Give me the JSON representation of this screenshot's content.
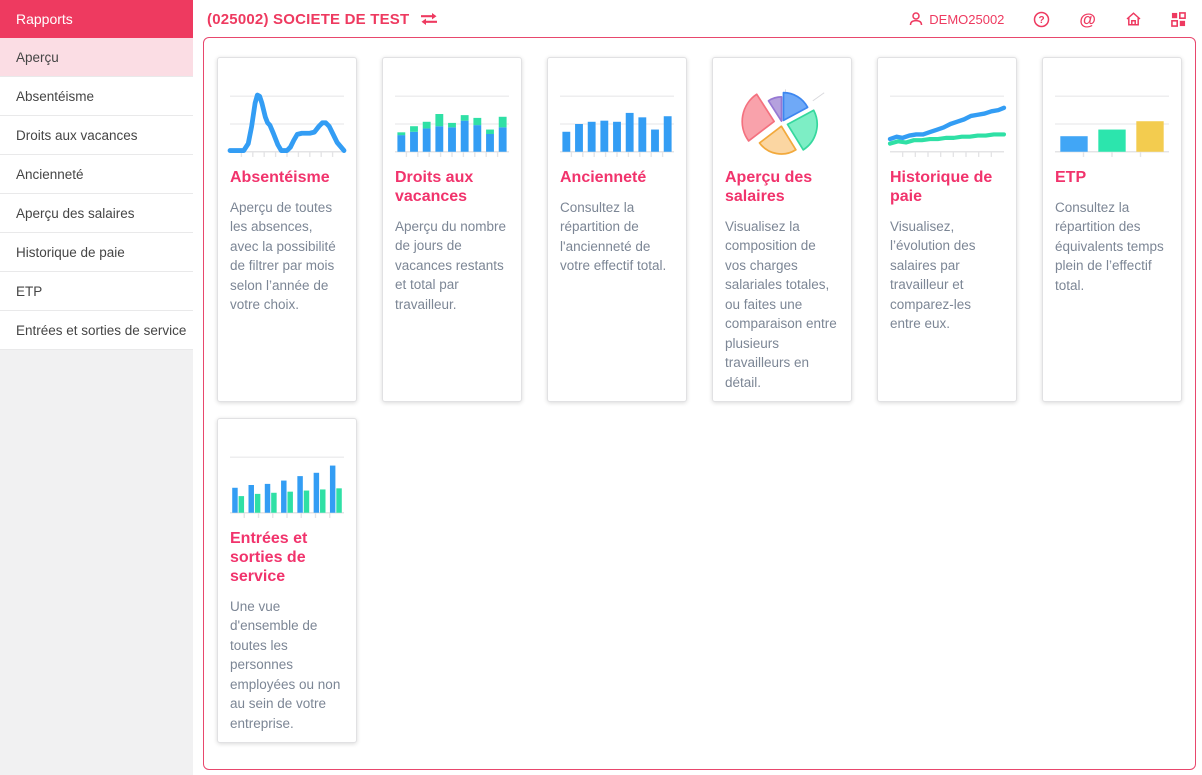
{
  "colors": {
    "accent": "#ee3a60",
    "card_title": "#f1336c",
    "selected_item_bg": "#fbdde4",
    "panel_border": "#e8476d",
    "chart_blue": "#339df4",
    "chart_green": "#2fe0a5",
    "chart_yellow": "#f3cc4f"
  },
  "sidebar": {
    "title": "Rapports",
    "items": [
      {
        "label": "Aperçu",
        "active": true
      },
      {
        "label": "Absentéisme",
        "active": false
      },
      {
        "label": "Droits aux vacances",
        "active": false
      },
      {
        "label": "Ancienneté",
        "active": false
      },
      {
        "label": "Aperçu des salaires",
        "active": false
      },
      {
        "label": "Historique de paie",
        "active": false
      },
      {
        "label": "ETP",
        "active": false
      },
      {
        "label": "Entrées et sorties de service",
        "active": false
      }
    ]
  },
  "header": {
    "company": "(025002) SOCIETE DE TEST",
    "user": "DEMO25002",
    "icons": [
      "user-icon",
      "switch-company-icon",
      "help-icon",
      "at-icon",
      "home-icon",
      "apps-icon"
    ]
  },
  "cards": [
    {
      "title": "Absentéisme",
      "description": "Aperçu de toutes les absences, avec la possibilité de filtrer par mois selon l’année de votre choix.",
      "chart": {
        "type": "line",
        "grid": [
          8,
          32
        ],
        "ticks": 9,
        "series": [
          {
            "color": "#339df4",
            "width": 4.2,
            "points": [
              [
                0,
                55
              ],
              [
                12,
                55
              ],
              [
                16,
                49
              ],
              [
                19,
                34
              ],
              [
                22,
                14
              ],
              [
                24,
                7
              ],
              [
                26,
                8
              ],
              [
                28,
                14
              ],
              [
                31,
                26
              ],
              [
                33,
                31
              ],
              [
                35,
                33
              ],
              [
                38,
                40
              ],
              [
                42,
                50
              ],
              [
                45,
                55
              ],
              [
                50,
                55
              ],
              [
                53,
                52
              ],
              [
                56,
                46
              ],
              [
                59,
                41
              ],
              [
                63,
                40
              ],
              [
                70,
                40
              ],
              [
                74,
                39
              ],
              [
                78,
                34
              ],
              [
                81,
                31
              ],
              [
                84,
                31
              ],
              [
                87,
                34
              ],
              [
                90,
                40
              ],
              [
                94,
                48
              ],
              [
                100,
                55
              ]
            ]
          }
        ]
      }
    },
    {
      "title": "Droits aux vacances",
      "description": "Aperçu du nombre de jours de vacances restants et total par travailleur.",
      "chart": {
        "type": "stacked",
        "grid": [
          8,
          32
        ],
        "ticks": 9,
        "colors": [
          "#339df4",
          "#2fe0a5"
        ],
        "values": [
          [
            30,
            5
          ],
          [
            36,
            10
          ],
          [
            42,
            12
          ],
          [
            46,
            22
          ],
          [
            44,
            8
          ],
          [
            56,
            10
          ],
          [
            48,
            13
          ],
          [
            32,
            8
          ],
          [
            44,
            19
          ]
        ]
      }
    },
    {
      "title": "Ancienneté",
      "description": "Consultez la répartition de l'ancienneté de votre effectif total.",
      "chart": {
        "type": "bars",
        "grid": [
          8,
          32
        ],
        "ticks": 9,
        "color": "#339df4",
        "values": [
          36,
          50,
          54,
          56,
          54,
          70,
          62,
          40,
          64
        ]
      }
    },
    {
      "title": "Aperçu des salaires",
      "description": "Visualisez la composition de vos charges salariales totales, ou faites une comparaison entre plusieurs travailleurs en détail.",
      "chart": {
        "type": "pie",
        "slices": [
          {
            "a0": 233,
            "a1": 327,
            "r": 28,
            "explode": 7,
            "fill": "#f9a2ab",
            "stroke": "#f4717f"
          },
          {
            "a0": 327,
            "a1": 360,
            "r": 21,
            "explode": 1.5,
            "fill": "#b5a1dd",
            "stroke": "#9678d3"
          },
          {
            "a0": 0,
            "a1": 62,
            "r": 24,
            "explode": 2.5,
            "fill": "#6fa9f7",
            "stroke": "#3d87f0"
          },
          {
            "a0": 62,
            "a1": 148,
            "r": 26,
            "explode": 5,
            "fill": "#7deec5",
            "stroke": "#35d89e"
          },
          {
            "a0": 148,
            "a1": 233,
            "r": 24,
            "explode": 3,
            "fill": "#fbd6a2",
            "stroke": "#f2a93c"
          }
        ],
        "leaders": [
          [
            53,
            2,
            53,
            11
          ],
          [
            77,
            12,
            87,
            5
          ]
        ]
      }
    },
    {
      "title": "Historique de paie",
      "description": "Visualisez, l’évolution des salaires par travailleur et comparez-les entre eux.",
      "chart": {
        "type": "line",
        "grid": [
          8
        ],
        "ticks": 8,
        "series": [
          {
            "color": "#2fe0a5",
            "width": 3.6,
            "points": [
              [
                0,
                49
              ],
              [
                7,
                47
              ],
              [
                14,
                48
              ],
              [
                21,
                46
              ],
              [
                28,
                46
              ],
              [
                35,
                45
              ],
              [
                42,
                45
              ],
              [
                49,
                44
              ],
              [
                56,
                44
              ],
              [
                63,
                43
              ],
              [
                70,
                43
              ],
              [
                77,
                42
              ],
              [
                84,
                42
              ],
              [
                91,
                41
              ],
              [
                100,
                41
              ]
            ]
          },
          {
            "color": "#339df4",
            "width": 3.8,
            "points": [
              [
                0,
                45
              ],
              [
                6,
                43
              ],
              [
                11,
                44
              ],
              [
                17,
                42
              ],
              [
                23,
                41
              ],
              [
                29,
                41
              ],
              [
                35,
                39
              ],
              [
                41,
                37
              ],
              [
                47,
                35
              ],
              [
                53,
                32
              ],
              [
                59,
                30
              ],
              [
                65,
                28
              ],
              [
                71,
                25
              ],
              [
                77,
                24
              ],
              [
                83,
                23
              ],
              [
                89,
                21
              ],
              [
                95,
                20
              ],
              [
                100,
                18
              ]
            ]
          }
        ]
      }
    },
    {
      "title": "ETP",
      "description": "Consultez la répartition des équivalents temps plein de l’effectif total.",
      "chart": {
        "type": "bars",
        "grid": [
          8,
          32
        ],
        "ticks": 3,
        "wide": true,
        "colors": [
          "#41a6f6",
          "#2ce5ad",
          "#f3cc4f"
        ],
        "values": [
          28,
          40,
          55
        ]
      }
    },
    {
      "title": "Entrées et sorties de service",
      "description": "Une vue d'ensemble de toutes les personnes employées ou non au sein de votre entreprise.",
      "chart": {
        "type": "grouped",
        "grid": [
          8
        ],
        "ticks": 7,
        "colors": [
          "#339df4",
          "#2fe0a5"
        ],
        "pairs": [
          [
            45,
            30
          ],
          [
            50,
            34
          ],
          [
            52,
            36
          ],
          [
            58,
            38
          ],
          [
            66,
            40
          ],
          [
            72,
            42
          ],
          [
            85,
            44
          ]
        ]
      }
    }
  ]
}
